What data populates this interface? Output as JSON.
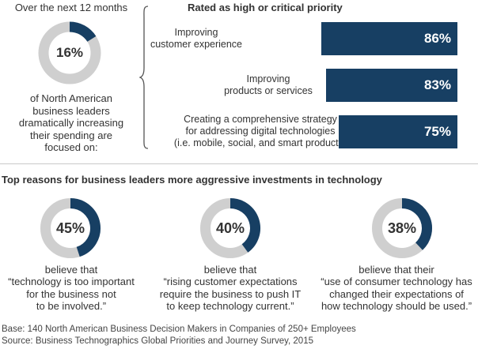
{
  "colors": {
    "accent": "#173f63",
    "track": "#cfcfcf"
  },
  "intro": {
    "title": "Over the next 12 months",
    "value_label": "16%",
    "value": 16,
    "description_lines": [
      "of North American",
      "business leaders",
      "dramatically increasing",
      "their spending are",
      "focused on:"
    ]
  },
  "priorities": {
    "title": "Rated as high or critical priority"
  },
  "reasons": {
    "title": "Top reasons for business leaders more aggressive investments in technology",
    "items": [
      {
        "value_label": "45%",
        "value": 45,
        "lines": [
          "believe that",
          "“technology is too important",
          "for the business not",
          "to be involved.”"
        ]
      },
      {
        "value_label": "40%",
        "value": 40,
        "lines": [
          "believe that",
          "“rising customer expectations",
          "require the business to push IT",
          "to keep technology current.”"
        ]
      },
      {
        "value_label": "38%",
        "value": 38,
        "lines": [
          "believe that their",
          "“use of consumer technology has",
          "changed their expectations of",
          "how technology should be used.”"
        ]
      }
    ]
  },
  "footnotes": {
    "base": "Base: 140 North American Business Decision Makers in Companies of 250+ Employees",
    "source": "Source: Business Technographics Global Priorities and Journey Survey, 2015"
  },
  "chart_data": [
    {
      "type": "pie",
      "title": "Over the next 12 months",
      "values": [
        16
      ],
      "labels": [
        "16%"
      ]
    },
    {
      "type": "bar",
      "title": "Rated as high or critical priority",
      "orientation": "horizontal",
      "categories": [
        [
          "Improving",
          "customer experience"
        ],
        [
          "Improving",
          "products or services"
        ],
        [
          "Creating a comprehensive strategy",
          "for addressing digital technologies",
          "(i.e. mobile, social, and smart products)"
        ]
      ],
      "values": [
        86,
        83,
        75
      ],
      "value_labels": [
        "86%",
        "83%",
        "75%"
      ]
    },
    {
      "type": "pie",
      "title": "Top reasons for business leaders more aggressive investments in technology",
      "values": [
        45,
        40,
        38
      ],
      "labels": [
        "45%",
        "40%",
        "38%"
      ]
    }
  ]
}
